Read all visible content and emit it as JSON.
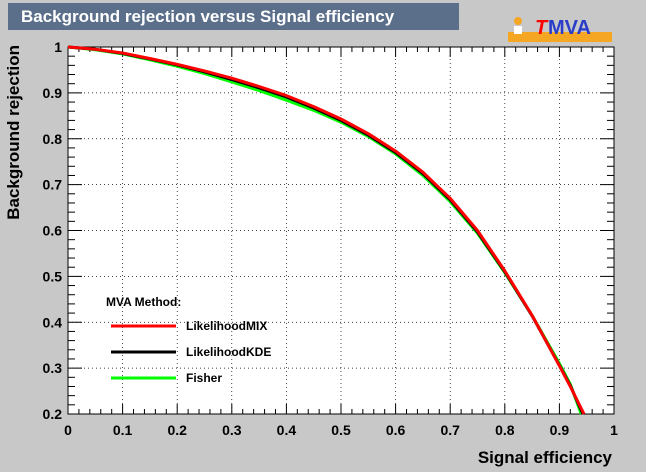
{
  "chart_data": {
    "type": "line",
    "title": "Background rejection versus Signal efficiency",
    "xlabel": "Signal efficiency",
    "ylabel": "Background rejection",
    "xlim": [
      0,
      1
    ],
    "ylim": [
      0.2,
      1
    ],
    "xticks": [
      "0",
      "0.1",
      "0.2",
      "0.3",
      "0.4",
      "0.5",
      "0.6",
      "0.7",
      "0.8",
      "0.9",
      "1"
    ],
    "yticks": [
      "0.2",
      "0.3",
      "0.4",
      "0.5",
      "0.6",
      "0.7",
      "0.8",
      "0.9",
      "1"
    ],
    "grid": true,
    "legend": {
      "title": "MVA Method:",
      "placement": "bottom-left"
    },
    "series": [
      {
        "name": "LikelihoodMIX",
        "color": "#ff0000",
        "points": [
          [
            0,
            1.0
          ],
          [
            0.05,
            0.995
          ],
          [
            0.1,
            0.987
          ],
          [
            0.15,
            0.975
          ],
          [
            0.2,
            0.962
          ],
          [
            0.25,
            0.948
          ],
          [
            0.3,
            0.932
          ],
          [
            0.35,
            0.914
          ],
          [
            0.4,
            0.894
          ],
          [
            0.45,
            0.87
          ],
          [
            0.5,
            0.843
          ],
          [
            0.55,
            0.811
          ],
          [
            0.6,
            0.773
          ],
          [
            0.65,
            0.727
          ],
          [
            0.7,
            0.67
          ],
          [
            0.75,
            0.6
          ],
          [
            0.8,
            0.512
          ],
          [
            0.85,
            0.415
          ],
          [
            0.9,
            0.305
          ],
          [
            0.92,
            0.26
          ],
          [
            0.945,
            0.2
          ]
        ]
      },
      {
        "name": "LikelihoodKDE",
        "color": "#000000",
        "points": [
          [
            0,
            1.0
          ],
          [
            0.05,
            0.995
          ],
          [
            0.1,
            0.986
          ],
          [
            0.15,
            0.974
          ],
          [
            0.2,
            0.961
          ],
          [
            0.25,
            0.946
          ],
          [
            0.3,
            0.929
          ],
          [
            0.35,
            0.911
          ],
          [
            0.4,
            0.891
          ],
          [
            0.45,
            0.867
          ],
          [
            0.5,
            0.84
          ],
          [
            0.55,
            0.808
          ],
          [
            0.6,
            0.77
          ],
          [
            0.65,
            0.724
          ],
          [
            0.7,
            0.667
          ],
          [
            0.75,
            0.597
          ],
          [
            0.8,
            0.51
          ],
          [
            0.85,
            0.414
          ],
          [
            0.9,
            0.306
          ],
          [
            0.92,
            0.262
          ],
          [
            0.943,
            0.2
          ]
        ]
      },
      {
        "name": "Fisher",
        "color": "#00ff00",
        "points": [
          [
            0,
            1.0
          ],
          [
            0.05,
            0.994
          ],
          [
            0.1,
            0.985
          ],
          [
            0.15,
            0.972
          ],
          [
            0.2,
            0.958
          ],
          [
            0.25,
            0.942
          ],
          [
            0.3,
            0.924
          ],
          [
            0.35,
            0.905
          ],
          [
            0.4,
            0.884
          ],
          [
            0.45,
            0.862
          ],
          [
            0.5,
            0.836
          ],
          [
            0.55,
            0.805
          ],
          [
            0.6,
            0.767
          ],
          [
            0.65,
            0.72
          ],
          [
            0.7,
            0.663
          ],
          [
            0.75,
            0.594
          ],
          [
            0.8,
            0.508
          ],
          [
            0.85,
            0.415
          ],
          [
            0.9,
            0.31
          ],
          [
            0.92,
            0.265
          ],
          [
            0.94,
            0.2
          ]
        ]
      }
    ]
  },
  "logo": {
    "text_t": "T",
    "text_mva": "MVA",
    "t_color": "#ff0000",
    "mva_color": "#2a3cc8",
    "accent": "#f5a623"
  }
}
